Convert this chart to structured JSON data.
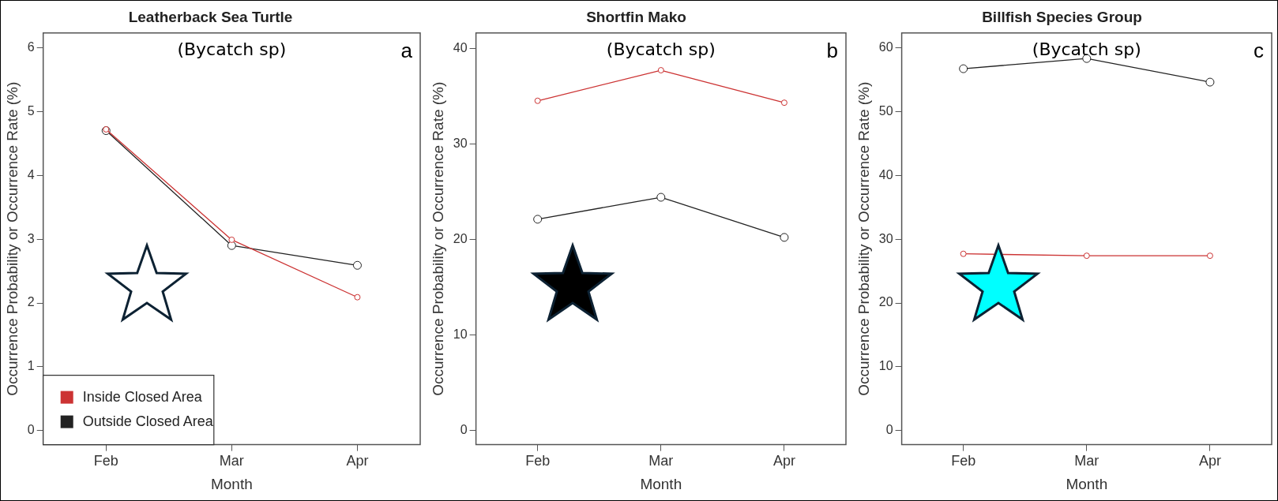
{
  "chart_data": [
    {
      "type": "line",
      "title": "Leatherback Sea Turtle",
      "xlabel": "Month",
      "ylabel": "Occurrence Probability or Occurrence Rate (%)",
      "annotations": [
        "(Bycatch sp)",
        "a"
      ],
      "categories": [
        "Feb",
        "Mar",
        "Apr"
      ],
      "series": [
        {
          "name": "Inside Closed Area",
          "color": "#cc3333",
          "values": [
            4.72,
            2.99,
            2.09
          ]
        },
        {
          "name": "Outside Closed Area",
          "color": "#222222",
          "values": [
            4.7,
            2.9,
            2.59
          ]
        }
      ],
      "ylim": [
        -0.22,
        6.23
      ],
      "yticks": [
        0,
        1,
        2,
        3,
        4,
        5,
        6
      ],
      "grid": false,
      "legend": "bottom left",
      "marker": "circle"
    },
    {
      "type": "line",
      "title": "Shortfin Mako",
      "xlabel": "Month",
      "ylabel": "Occurrence Probability or Occurrence Rate (%)",
      "annotations": [
        "(Bycatch sp)",
        "b"
      ],
      "categories": [
        "Feb",
        "Mar",
        "Apr"
      ],
      "series": [
        {
          "color": "#cc3333",
          "values": [
            34.5,
            37.7,
            34.3
          ]
        },
        {
          "color": "#222222",
          "values": [
            22.1,
            24.4,
            20.2
          ]
        }
      ],
      "ylim": [
        -1.5,
        41.6
      ],
      "yticks": [
        0,
        10,
        20,
        30,
        40
      ],
      "grid": false,
      "marker": "circle"
    },
    {
      "type": "line",
      "title": "Billfish Species Group",
      "xlabel": "Month",
      "ylabel": "Occurrence Probability or Occurrence Rate (%)",
      "annotations": [
        "(Bycatch sp)",
        "c"
      ],
      "categories": [
        "Feb",
        "Mar",
        "Apr"
      ],
      "series": [
        {
          "color": "#cc3333",
          "values": [
            27.7,
            27.4,
            27.4
          ]
        },
        {
          "color": "#222222",
          "values": [
            56.7,
            58.3,
            54.6
          ]
        }
      ],
      "ylim": [
        -2.2,
        62.3
      ],
      "yticks": [
        0,
        10,
        20,
        30,
        40,
        50,
        60
      ],
      "grid": false,
      "marker": "circle"
    }
  ]
}
